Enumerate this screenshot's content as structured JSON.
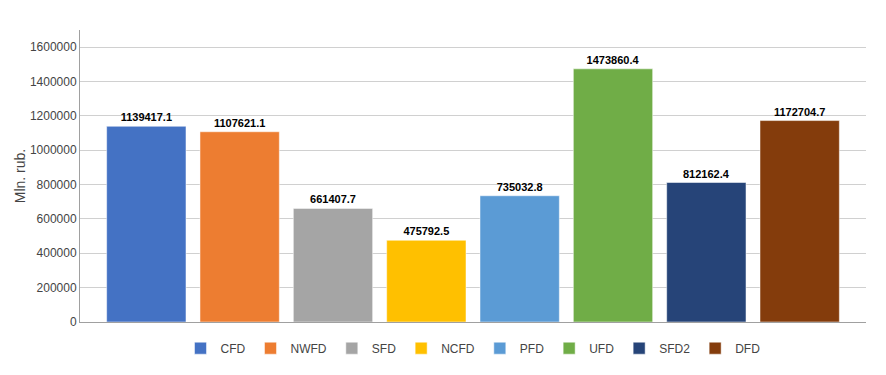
{
  "chart_data": {
    "type": "bar",
    "categories": [
      null
    ],
    "series": [
      {
        "name": "CFD",
        "color": "#4472C4",
        "values": [
          1139417.1
        ]
      },
      {
        "name": "NWFD",
        "color": "#ED7D31",
        "values": [
          1107621.1
        ]
      },
      {
        "name": "SFD",
        "color": "#A5A5A5",
        "values": [
          661407.7
        ]
      },
      {
        "name": "NCFD",
        "color": "#FFC000",
        "values": [
          475792.5
        ]
      },
      {
        "name": "PFD",
        "color": "#5B9BD5",
        "values": [
          735032.8
        ]
      },
      {
        "name": "UFD",
        "color": "#70AD47",
        "values": [
          1473860.4
        ]
      },
      {
        "name": "SFD2",
        "color": "#264478",
        "values": [
          812162.4
        ]
      },
      {
        "name": "DFD",
        "color": "#843C0C",
        "values": [
          1172704.7
        ]
      }
    ],
    "ylabel": "Mln. rub.",
    "ylim": [
      0,
      1700000
    ],
    "yticks": [
      0,
      200000,
      400000,
      600000,
      800000,
      1000000,
      1200000,
      1400000,
      1600000
    ],
    "grid": true,
    "legend": "bottom",
    "data_labels": true
  }
}
